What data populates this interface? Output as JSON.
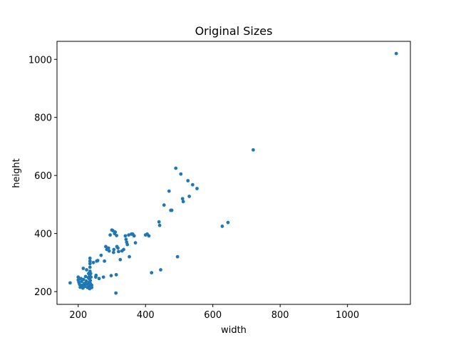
{
  "chart_data": {
    "type": "scatter",
    "title": "Original Sizes",
    "xlabel": "width",
    "ylabel": "height",
    "xlim": [
      137,
      1187
    ],
    "ylim": [
      156,
      1062
    ],
    "xticks": [
      200,
      400,
      600,
      800,
      1000
    ],
    "yticks": [
      200,
      400,
      600,
      800,
      1000
    ],
    "grid": false,
    "marker_color": "#1f77b4",
    "points": [
      [
        176,
        230
      ],
      [
        200,
        250
      ],
      [
        200,
        240
      ],
      [
        202,
        232
      ],
      [
        204,
        225
      ],
      [
        206,
        215
      ],
      [
        208,
        245
      ],
      [
        210,
        235
      ],
      [
        212,
        222
      ],
      [
        214,
        212
      ],
      [
        215,
        280
      ],
      [
        216,
        242
      ],
      [
        218,
        228
      ],
      [
        220,
        218
      ],
      [
        222,
        252
      ],
      [
        224,
        236
      ],
      [
        225,
        275
      ],
      [
        226,
        226
      ],
      [
        228,
        214
      ],
      [
        230,
        248
      ],
      [
        231,
        262
      ],
      [
        232,
        220
      ],
      [
        233,
        232
      ],
      [
        233,
        244
      ],
      [
        234,
        210
      ],
      [
        234,
        256
      ],
      [
        235,
        270
      ],
      [
        235,
        284
      ],
      [
        235,
        296
      ],
      [
        235,
        305
      ],
      [
        235,
        315
      ],
      [
        236,
        238
      ],
      [
        236,
        228
      ],
      [
        237,
        218
      ],
      [
        237,
        262
      ],
      [
        238,
        250
      ],
      [
        240,
        222
      ],
      [
        240,
        214
      ],
      [
        245,
        300
      ],
      [
        252,
        250
      ],
      [
        253,
        256
      ],
      [
        255,
        305
      ],
      [
        258,
        307
      ],
      [
        262,
        245
      ],
      [
        268,
        325
      ],
      [
        275,
        250
      ],
      [
        278,
        305
      ],
      [
        282,
        355
      ],
      [
        285,
        345
      ],
      [
        290,
        350
      ],
      [
        292,
        340
      ],
      [
        295,
        395
      ],
      [
        298,
        255
      ],
      [
        300,
        412
      ],
      [
        303,
        410
      ],
      [
        305,
        335
      ],
      [
        306,
        345
      ],
      [
        308,
        400
      ],
      [
        310,
        405
      ],
      [
        312,
        195
      ],
      [
        313,
        258
      ],
      [
        314,
        393
      ],
      [
        315,
        355
      ],
      [
        318,
        350
      ],
      [
        320,
        338
      ],
      [
        325,
        310
      ],
      [
        330,
        340
      ],
      [
        335,
        345
      ],
      [
        340,
        392
      ],
      [
        342,
        380
      ],
      [
        344,
        370
      ],
      [
        346,
        362
      ],
      [
        350,
        395
      ],
      [
        352,
        320
      ],
      [
        358,
        398
      ],
      [
        362,
        398
      ],
      [
        366,
        392
      ],
      [
        370,
        368
      ],
      [
        400,
        395
      ],
      [
        405,
        398
      ],
      [
        410,
        392
      ],
      [
        418,
        265
      ],
      [
        440,
        440
      ],
      [
        442,
        428
      ],
      [
        445,
        275
      ],
      [
        455,
        498
      ],
      [
        470,
        546
      ],
      [
        475,
        480
      ],
      [
        478,
        480
      ],
      [
        490,
        625
      ],
      [
        495,
        320
      ],
      [
        505,
        605
      ],
      [
        510,
        520
      ],
      [
        512,
        510
      ],
      [
        526,
        582
      ],
      [
        530,
        528
      ],
      [
        540,
        568
      ],
      [
        553,
        555
      ],
      [
        628,
        425
      ],
      [
        645,
        438
      ],
      [
        720,
        688
      ],
      [
        1145,
        1020
      ]
    ]
  }
}
